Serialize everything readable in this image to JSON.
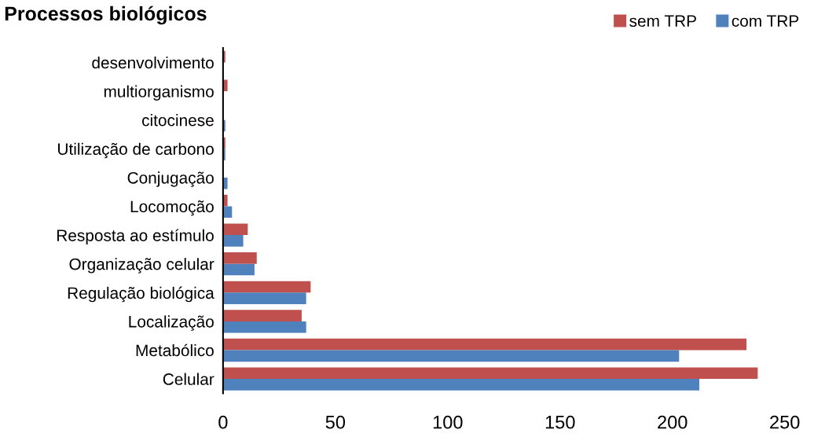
{
  "chart_data": {
    "type": "bar",
    "orientation": "horizontal",
    "title": "Processos biológicos",
    "categories": [
      "desenvolvimento",
      "multiorganismo",
      "citocinese",
      "Utilização de carbono",
      "Conjugação",
      "Locomoção",
      "Resposta ao estímulo",
      "Organização celular",
      "Regulação biológica",
      "Localização",
      "Metabólico",
      "Celular"
    ],
    "series": [
      {
        "name": "sem TRP",
        "color": "#c0504d",
        "values": [
          1,
          2,
          0,
          1,
          0,
          2,
          11,
          15,
          39,
          35,
          233,
          238
        ]
      },
      {
        "name": "com TRP",
        "color": "#4f81bd",
        "values": [
          0,
          0,
          1,
          1,
          2,
          4,
          9,
          14,
          37,
          37,
          203,
          212
        ]
      }
    ],
    "xlim": [
      0,
      250
    ],
    "xticks": [
      0,
      50,
      100,
      150,
      200,
      250
    ],
    "grid": false,
    "legend": "top right"
  }
}
